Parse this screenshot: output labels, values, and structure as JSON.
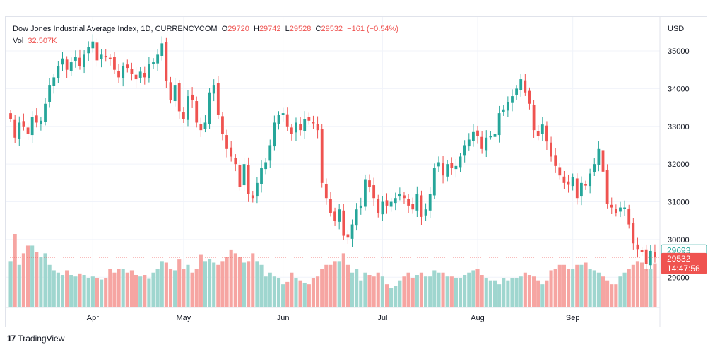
{
  "header": {
    "symbol": "Dow Jones Industrial Average Index, 1D, CURRENCYCOM",
    "open_label": "O",
    "open": "29720",
    "high_label": "H",
    "high": "29742",
    "low_label": "L",
    "low": "29528",
    "close_label": "C",
    "close": "29532",
    "change": "−161 (−0.54%)",
    "vol_label": "Vol",
    "vol": "32.507K"
  },
  "price_labels": {
    "currency": "USD",
    "prev_close": "29693",
    "last": "29532",
    "countdown": "14:47:56"
  },
  "footer": {
    "brand": "TradingView",
    "logo": "17"
  },
  "colors": {
    "up": "#26a69a",
    "down": "#ef5350",
    "vol_up": "#9fd6cf",
    "vol_down": "#f6a5a2",
    "grid": "#f0f3fa",
    "text": "#131722"
  },
  "chart_data": {
    "type": "candlestick",
    "y_axis_ticks": [
      29000,
      30000,
      31000,
      32000,
      33000,
      34000,
      35000
    ],
    "x_axis_labels": [
      "Apr",
      "May",
      "Jun",
      "Jul",
      "Aug",
      "Sep"
    ],
    "x_label_bar_index": [
      19,
      40,
      63,
      86,
      108,
      130
    ],
    "ylim": [
      28200,
      35900
    ],
    "close_series": [
      33200,
      32700,
      33100,
      33000,
      32800,
      33250,
      33100,
      33150,
      33600,
      34100,
      34300,
      34600,
      34800,
      34500,
      34700,
      34850,
      34600,
      34900,
      35100,
      35250,
      34750,
      34900,
      34850,
      34800,
      34500,
      34300,
      34600,
      34550,
      34400,
      34250,
      34450,
      34300,
      34650,
      34700,
      34900,
      35200,
      34200,
      33700,
      34100,
      33400,
      33200,
      33800,
      33700,
      33100,
      32900,
      33100,
      33900,
      34100,
      33300,
      32800,
      32400,
      32200,
      32000,
      31400,
      32000,
      31200,
      31100,
      31500,
      31900,
      32050,
      32500,
      33100,
      33300,
      33350,
      33000,
      32800,
      33100,
      32900,
      33200,
      33150,
      33100,
      32900,
      31500,
      31100,
      30700,
      30500,
      30800,
      30100,
      30050,
      30400,
      30800,
      30900,
      31600,
      31400,
      31100,
      30700,
      31000,
      30900,
      31000,
      31100,
      31200,
      31100,
      30900,
      30800,
      31200,
      30600,
      30800,
      31200,
      31900,
      32050,
      31700,
      32000,
      31900,
      31950,
      32200,
      32500,
      32650,
      32850,
      32750,
      32400,
      32700,
      32750,
      32800,
      33350,
      33450,
      33650,
      33800,
      34000,
      34250,
      33900,
      33600,
      32900,
      32750,
      33050,
      32600,
      32200,
      31950,
      31700,
      31500,
      31450,
      31650,
      31100,
      31500,
      31450,
      31750,
      32000,
      32400,
      31800,
      30950,
      30850,
      30700,
      30850,
      30850,
      30400,
      29900,
      29750,
      29700,
      29350,
      29700,
      29532
    ],
    "volume_series": [
      60,
      95,
      55,
      70,
      80,
      80,
      72,
      65,
      70,
      55,
      48,
      45,
      42,
      48,
      42,
      40,
      44,
      42,
      38,
      40,
      38,
      36,
      38,
      50,
      45,
      50,
      50,
      45,
      48,
      42,
      40,
      42,
      37,
      45,
      50,
      60,
      58,
      50,
      48,
      62,
      50,
      55,
      45,
      50,
      68,
      60,
      63,
      58,
      55,
      60,
      65,
      75,
      70,
      65,
      58,
      60,
      70,
      60,
      55,
      40,
      45,
      40,
      38,
      30,
      33,
      45,
      38,
      35,
      32,
      30,
      38,
      40,
      50,
      55,
      55,
      60,
      60,
      70,
      55,
      45,
      50,
      35,
      45,
      42,
      40,
      45,
      40,
      30,
      25,
      28,
      35,
      40,
      45,
      38,
      42,
      45,
      40,
      40,
      48,
      45,
      45,
      40,
      40,
      38,
      38,
      42,
      45,
      48,
      50,
      42,
      38,
      35,
      35,
      30,
      38,
      35,
      38,
      38,
      40,
      45,
      42,
      40,
      35,
      30,
      35,
      48,
      50,
      55,
      55,
      50,
      50,
      55,
      55,
      58,
      50,
      48,
      45,
      40,
      35,
      30,
      30,
      40,
      45,
      50,
      55,
      60,
      58,
      50,
      50,
      57
    ]
  }
}
